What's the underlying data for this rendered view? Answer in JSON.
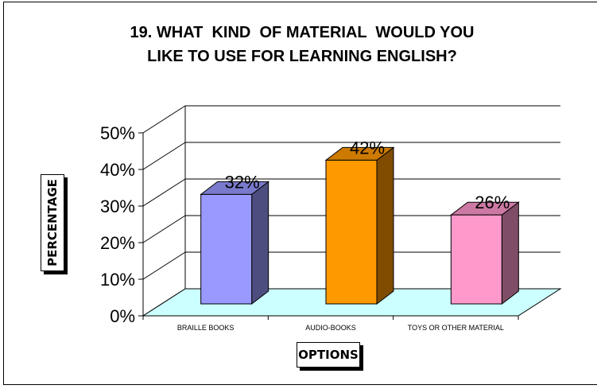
{
  "title_lines": [
    "19. WHAT  KIND  OF MATERIAL  WOULD YOU",
    "LIKE TO USE FOR LEARNING ENGLISH?"
  ],
  "axis": {
    "ylabel": "PERCENTAGE",
    "xlabel": "OPTIONS"
  },
  "colors": {
    "floor": "#ccffff",
    "bars": [
      {
        "front": "#9999ff",
        "side": "#4d4d80",
        "top": "#7a7acc"
      },
      {
        "front": "#ff9900",
        "side": "#804c00",
        "top": "#cc7a00"
      },
      {
        "front": "#ff99cc",
        "side": "#804d66",
        "top": "#cc7aa3"
      }
    ]
  },
  "chart_data": {
    "type": "bar",
    "categories": [
      "BRAILLE BOOKS",
      "AUDIO-BOOKS",
      "TOYS OR OTHER MATERIAL"
    ],
    "values": [
      32,
      42,
      26
    ],
    "data_labels": [
      "32%",
      "42%",
      "26%"
    ],
    "title": "19. WHAT  KIND  OF MATERIAL  WOULD YOU LIKE TO USE FOR LEARNING ENGLISH?",
    "xlabel": "OPTIONS",
    "ylabel": "PERCENTAGE",
    "ylim": [
      0,
      50
    ],
    "yticks": [
      "0%",
      "10%",
      "20%",
      "30%",
      "40%",
      "50%"
    ],
    "grid": true,
    "legend": "none"
  }
}
